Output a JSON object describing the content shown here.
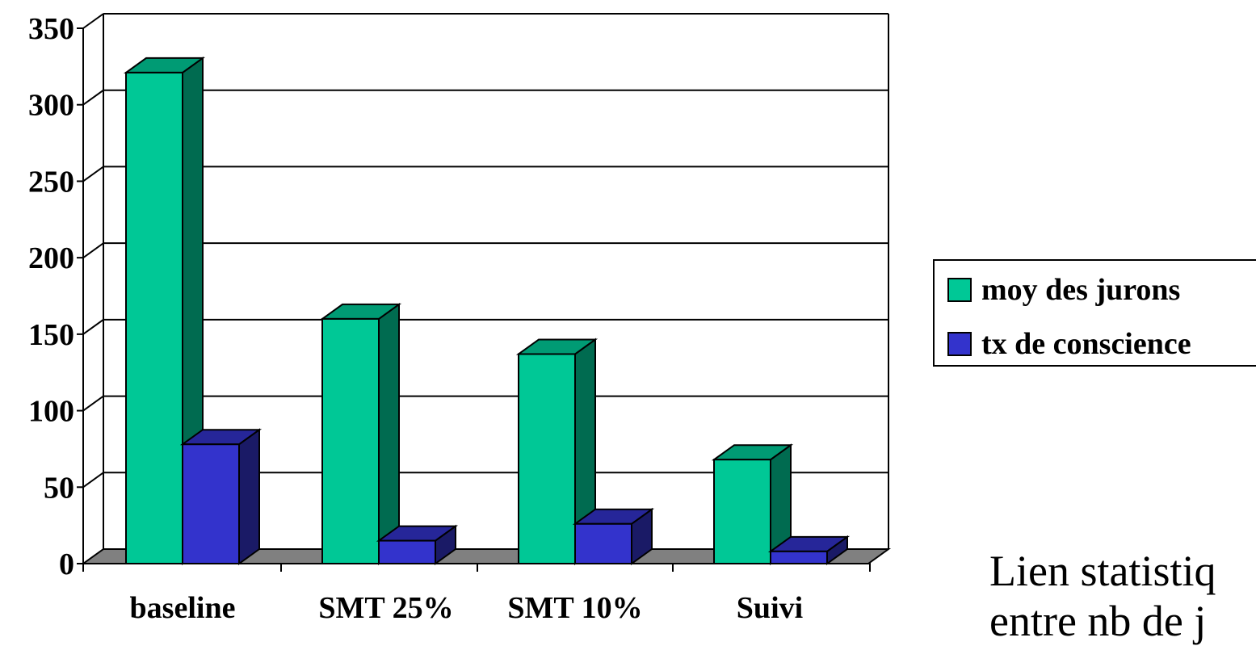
{
  "chart_data": {
    "type": "bar",
    "categories": [
      "baseline",
      "SMT 25%",
      "SMT 10%",
      "Suivi"
    ],
    "series": [
      {
        "name": "moy des jurons",
        "values": [
          321,
          160,
          137,
          68
        ]
      },
      {
        "name": "tx de conscience",
        "values": [
          78,
          15,
          26,
          8
        ]
      }
    ],
    "ylim": [
      0,
      350
    ],
    "yticks": [
      "0",
      "50",
      "100",
      "150",
      "200",
      "250",
      "300",
      "350"
    ],
    "grid": true,
    "legend_position": "right",
    "colors": {
      "series1_front": "#00c896",
      "series1_top": "#009b74",
      "series1_side": "#006b50",
      "series2_front": "#3333cc",
      "series2_top": "#262699",
      "series2_side": "#1a1a66",
      "floor": "#808080"
    }
  },
  "legend": {
    "items": [
      {
        "label": "moy des jurons",
        "color": "#00c896"
      },
      {
        "label": "tx de conscience",
        "color": "#3333cc"
      }
    ]
  },
  "caption": {
    "line1": "Lien statistiq",
    "line2": "entre nb de j"
  }
}
